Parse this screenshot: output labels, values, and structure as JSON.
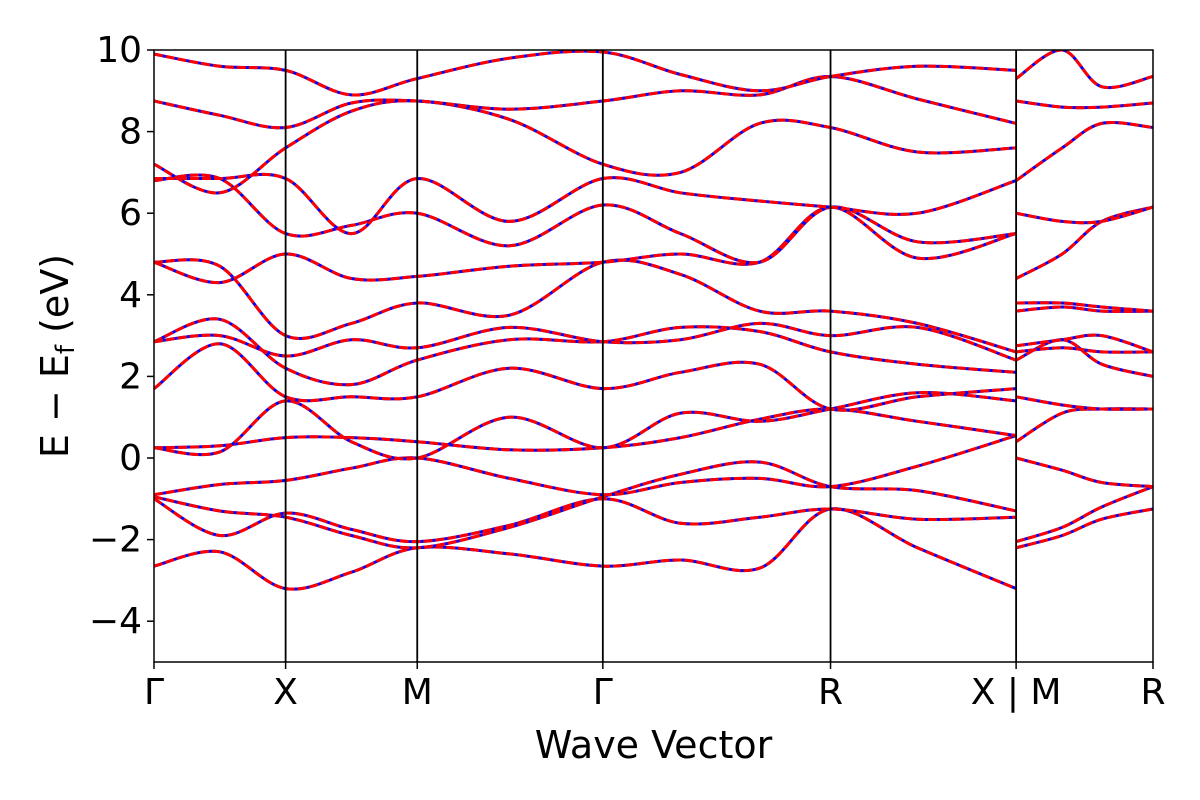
{
  "chart_data": {
    "type": "line",
    "xlabel": "Wave Vector",
    "ylabel": "E − E",
    "ylabel_subscript": "f",
    "ylabel_unit": " (eV)",
    "ylim": [
      -5,
      10
    ],
    "yticks": [
      -4,
      -2,
      0,
      2,
      4,
      6,
      8,
      10
    ],
    "ytick_labels": [
      "−4",
      "−2",
      "0",
      "2",
      "4",
      "6",
      "8",
      "10"
    ],
    "xlim": [
      0,
      7.59
    ],
    "kpoints": [
      {
        "x": 0.0,
        "label": "Γ"
      },
      {
        "x": 1.0,
        "label": "X"
      },
      {
        "x": 2.0,
        "label": "M"
      },
      {
        "x": 3.41,
        "label": "Γ"
      },
      {
        "x": 5.14,
        "label": "R"
      },
      {
        "x": 6.55,
        "label": "X | M"
      },
      {
        "x": 7.59,
        "label": "R"
      }
    ],
    "grid": false,
    "line_colors": {
      "reference": "#0000ff",
      "overlay": "#ff0000"
    },
    "bands": [
      {
        "x": [
          0.0,
          0.5,
          1.0,
          1.5,
          2.0,
          2.7,
          3.41,
          4.0,
          4.6,
          5.14,
          5.8,
          6.55
        ],
        "y": [
          -2.65,
          -2.3,
          -3.2,
          -2.8,
          -2.2,
          -2.35,
          -2.65,
          -2.5,
          -2.7,
          -1.25,
          -2.2,
          -3.2
        ]
      },
      {
        "x": [
          0.0,
          0.5,
          1.0,
          1.5,
          2.0,
          2.7,
          3.41,
          4.0,
          4.6,
          5.14,
          5.8,
          6.55
        ],
        "y": [
          -1.0,
          -1.9,
          -1.35,
          -1.75,
          -2.05,
          -1.65,
          -1.0,
          -1.6,
          -1.45,
          -1.25,
          -1.5,
          -1.45
        ]
      },
      {
        "x": [
          0.0,
          0.5,
          1.0,
          1.5,
          2.0,
          2.7,
          3.41,
          4.0,
          4.6,
          5.14,
          5.8,
          6.55
        ],
        "y": [
          -0.95,
          -1.3,
          -1.45,
          -1.9,
          -2.2,
          -1.7,
          -0.95,
          -0.4,
          -0.1,
          -0.7,
          -0.8,
          -1.3
        ]
      },
      {
        "x": [
          0.0,
          0.5,
          1.0,
          1.5,
          2.0,
          2.7,
          3.41,
          4.0,
          4.6,
          5.14,
          5.8,
          6.55
        ],
        "y": [
          -0.9,
          -0.65,
          -0.55,
          -0.25,
          0.0,
          -0.5,
          -0.9,
          -0.6,
          -0.5,
          -0.7,
          -0.2,
          0.55
        ]
      },
      {
        "x": [
          0.0,
          0.5,
          1.0,
          1.5,
          2.0,
          2.7,
          3.41,
          4.0,
          4.6,
          5.14,
          5.8,
          6.55
        ],
        "y": [
          0.25,
          0.3,
          0.5,
          0.5,
          0.4,
          0.2,
          0.25,
          0.5,
          0.95,
          1.2,
          0.9,
          0.55
        ]
      },
      {
        "x": [
          0.0,
          0.5,
          1.0,
          1.5,
          2.0,
          2.7,
          3.41,
          4.0,
          4.6,
          5.14,
          5.8,
          6.55
        ],
        "y": [
          0.25,
          0.15,
          1.4,
          0.4,
          0.0,
          1.0,
          0.25,
          1.1,
          0.9,
          1.2,
          1.6,
          1.4
        ]
      },
      {
        "x": [
          0.0,
          0.5,
          1.0,
          1.5,
          2.0,
          2.7,
          3.41,
          4.0,
          4.6,
          5.14,
          5.8,
          6.55
        ],
        "y": [
          1.7,
          2.8,
          1.5,
          1.5,
          1.5,
          2.2,
          1.7,
          2.1,
          2.3,
          1.2,
          1.5,
          1.7
        ]
      },
      {
        "x": [
          0.0,
          0.5,
          1.0,
          1.5,
          2.0,
          2.7,
          3.41,
          4.0,
          4.6,
          5.14,
          5.8,
          6.55
        ],
        "y": [
          2.85,
          3.4,
          2.2,
          1.8,
          2.4,
          2.9,
          2.85,
          3.2,
          3.1,
          2.6,
          2.3,
          2.1
        ]
      },
      {
        "x": [
          0.0,
          0.5,
          1.0,
          1.5,
          2.0,
          2.7,
          3.41,
          4.0,
          4.6,
          5.14,
          5.8,
          6.55
        ],
        "y": [
          2.85,
          3.0,
          2.5,
          2.9,
          2.7,
          3.2,
          2.85,
          2.9,
          3.3,
          3.0,
          3.2,
          2.4
        ]
      },
      {
        "x": [
          0.0,
          0.5,
          1.0,
          1.5,
          2.0,
          2.7,
          3.41,
          4.0,
          4.6,
          5.14,
          5.8,
          6.55
        ],
        "y": [
          4.8,
          4.7,
          3.0,
          3.3,
          3.8,
          3.5,
          4.8,
          4.5,
          3.6,
          3.6,
          3.3,
          2.6
        ]
      },
      {
        "x": [
          0.0,
          0.5,
          1.0,
          1.5,
          2.0,
          2.7,
          3.41,
          4.0,
          4.6,
          5.14,
          5.8,
          6.55
        ],
        "y": [
          4.8,
          4.3,
          5.0,
          4.4,
          4.45,
          4.7,
          4.8,
          5.0,
          4.8,
          6.15,
          4.9,
          5.5
        ]
      },
      {
        "x": [
          0.0,
          0.5,
          1.0,
          1.5,
          2.0,
          2.7,
          3.41,
          4.0,
          4.6,
          5.14,
          5.8,
          6.55
        ],
        "y": [
          6.8,
          6.85,
          5.5,
          5.7,
          6.0,
          5.2,
          6.2,
          5.5,
          4.8,
          6.15,
          5.3,
          5.5
        ]
      },
      {
        "x": [
          0.0,
          0.5,
          1.0,
          1.5,
          2.0,
          2.7,
          3.41,
          4.0,
          4.6,
          5.14,
          5.8,
          6.55
        ],
        "y": [
          6.85,
          6.85,
          6.85,
          5.5,
          6.85,
          5.8,
          6.85,
          6.5,
          6.3,
          6.15,
          6.0,
          6.8
        ]
      },
      {
        "x": [
          0.0,
          0.5,
          1.0,
          1.5,
          2.0,
          2.7,
          3.41,
          4.0,
          4.6,
          5.14,
          5.8,
          6.55
        ],
        "y": [
          7.2,
          6.5,
          7.6,
          8.5,
          8.75,
          8.3,
          7.2,
          7.0,
          8.2,
          8.1,
          7.5,
          7.6
        ]
      },
      {
        "x": [
          0.0,
          0.5,
          1.0,
          1.5,
          2.0,
          2.7,
          3.41,
          4.0,
          4.6,
          5.14,
          5.8,
          6.55
        ],
        "y": [
          8.75,
          8.4,
          8.1,
          8.7,
          8.75,
          8.55,
          8.75,
          9.0,
          8.9,
          9.35,
          8.8,
          8.2
        ]
      },
      {
        "x": [
          0.0,
          0.5,
          1.0,
          1.5,
          2.0,
          2.7,
          3.41,
          4.0,
          4.6,
          5.14,
          5.8,
          6.55
        ],
        "y": [
          9.9,
          9.6,
          9.5,
          8.9,
          9.3,
          9.8,
          9.95,
          9.4,
          9.0,
          9.35,
          9.6,
          9.5
        ]
      },
      {
        "x": [
          6.55,
          6.9,
          7.2,
          7.59
        ],
        "y": [
          -2.2,
          -1.9,
          -1.5,
          -1.25
        ]
      },
      {
        "x": [
          6.55,
          6.9,
          7.2,
          7.59
        ],
        "y": [
          -2.05,
          -1.7,
          -1.2,
          -0.7
        ]
      },
      {
        "x": [
          6.55,
          6.9,
          7.2,
          7.59
        ],
        "y": [
          0.0,
          -0.3,
          -0.6,
          -0.7
        ]
      },
      {
        "x": [
          6.55,
          6.9,
          7.2,
          7.59
        ],
        "y": [
          0.4,
          1.1,
          1.2,
          1.2
        ]
      },
      {
        "x": [
          6.55,
          6.9,
          7.2,
          7.59
        ],
        "y": [
          1.5,
          1.3,
          1.2,
          1.2
        ]
      },
      {
        "x": [
          6.55,
          6.9,
          7.2,
          7.59
        ],
        "y": [
          2.4,
          2.9,
          2.3,
          2.0
        ]
      },
      {
        "x": [
          6.55,
          6.9,
          7.2,
          7.59
        ],
        "y": [
          2.6,
          2.7,
          2.6,
          2.6
        ]
      },
      {
        "x": [
          6.55,
          6.9,
          7.2,
          7.59
        ],
        "y": [
          2.75,
          2.9,
          3.0,
          2.6
        ]
      },
      {
        "x": [
          6.55,
          6.9,
          7.2,
          7.59
        ],
        "y": [
          3.6,
          3.7,
          3.6,
          3.6
        ]
      },
      {
        "x": [
          6.55,
          6.9,
          7.2,
          7.59
        ],
        "y": [
          3.8,
          3.8,
          3.7,
          3.6
        ]
      },
      {
        "x": [
          6.55,
          6.9,
          7.2,
          7.59
        ],
        "y": [
          4.4,
          5.0,
          5.8,
          6.15
        ]
      },
      {
        "x": [
          6.55,
          6.9,
          7.2,
          7.59
        ],
        "y": [
          6.0,
          5.8,
          5.8,
          6.15
        ]
      },
      {
        "x": [
          6.55,
          6.9,
          7.2,
          7.59
        ],
        "y": [
          6.8,
          7.6,
          8.2,
          8.1
        ]
      },
      {
        "x": [
          6.55,
          6.9,
          7.2,
          7.59
        ],
        "y": [
          8.75,
          8.6,
          8.6,
          8.7
        ]
      },
      {
        "x": [
          6.55,
          6.9,
          7.2,
          7.59
        ],
        "y": [
          9.3,
          10.0,
          9.1,
          9.35
        ]
      }
    ]
  }
}
